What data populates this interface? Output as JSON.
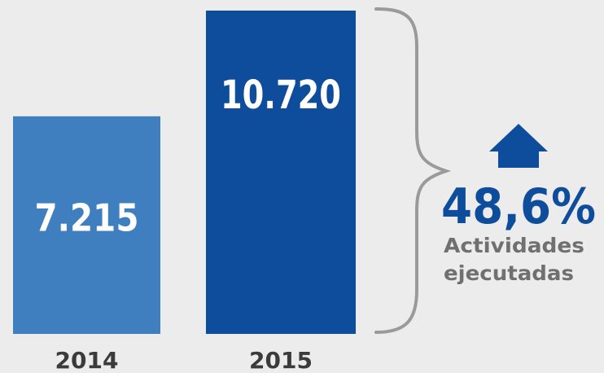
{
  "chart_data": {
    "type": "bar",
    "title": "",
    "xlabel": "",
    "ylabel": "",
    "categories": [
      "2014",
      "2015"
    ],
    "values": [
      7215,
      10720
    ],
    "value_labels": [
      "7.215",
      "10.720"
    ],
    "ylim": [
      0,
      10720
    ],
    "grid": false,
    "colors": {
      "bars": [
        "#3f7fc0",
        "#0e4c9c"
      ],
      "value_text": "#ffffff",
      "category_text": "#3b3b3b",
      "brace": "#9a9a9a"
    }
  },
  "summary": {
    "change_label": "48,6%",
    "caption_lines": [
      "Actividades",
      "ejecutadas"
    ],
    "trend": "up",
    "arrow_icon": "up-arrow-icon",
    "accent_color": "#0e4c9c",
    "caption_color": "#707070"
  }
}
